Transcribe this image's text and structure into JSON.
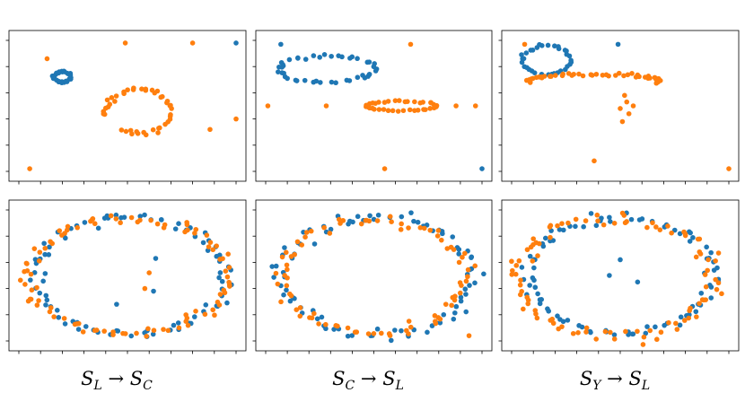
{
  "colors": {
    "series_a": "#1f77b4",
    "series_b": "#ff7f0e",
    "frame": "#000000"
  },
  "captions": [
    {
      "s1": "S",
      "s1_sub": "L",
      "arrow": "→",
      "s2": "S",
      "s2_sub": "C"
    },
    {
      "s1": "S",
      "s1_sub": "C",
      "arrow": "→",
      "s2": "S",
      "s2_sub": "L"
    },
    {
      "s1": "S",
      "s1_sub": "Y",
      "arrow": "→",
      "s2": "S",
      "s2_sub": "L"
    }
  ],
  "chart_data": [
    {
      "type": "scatter",
      "panel": "top-left",
      "xlim": [
        0,
        100
      ],
      "ylim": [
        0,
        100
      ],
      "tick_labels": false,
      "series": [
        {
          "color": "#1f77b4",
          "shape": "ring",
          "center": [
            20,
            72
          ],
          "radius": [
            4,
            4
          ],
          "n": 30,
          "noise": 0.6,
          "extra": [
            [
              100,
              98
            ]
          ]
        },
        {
          "color": "#ff7f0e",
          "shape": "ring",
          "center": [
            55,
            46
          ],
          "radius": [
            15,
            17
          ],
          "n": 45,
          "noise": 1.2,
          "arc": [
            -2.2,
            3.5
          ],
          "extra": [
            [
              13,
              86
            ],
            [
              49,
              98
            ],
            [
              80,
              98
            ],
            [
              88,
              32
            ],
            [
              100,
              40
            ],
            [
              5,
              2
            ]
          ]
        }
      ]
    },
    {
      "type": "scatter",
      "panel": "top-center",
      "xlim": [
        0,
        100
      ],
      "ylim": [
        0,
        100
      ],
      "tick_labels": false,
      "series": [
        {
          "color": "#1f77b4",
          "shape": "ring",
          "center": [
            28,
            78
          ],
          "radius": [
            22,
            10
          ],
          "n": 45,
          "noise": 1.2,
          "extra": [
            [
              7,
              97
            ],
            [
              100,
              2
            ]
          ]
        },
        {
          "color": "#ff7f0e",
          "shape": "ring",
          "center": [
            63,
            50
          ],
          "radius": [
            16,
            3.5
          ],
          "n": 40,
          "noise": 0.6,
          "extra": [
            [
              67,
              97
            ],
            [
              1,
              50
            ],
            [
              28,
              50
            ],
            [
              97,
              50
            ],
            [
              88,
              50
            ],
            [
              55,
              2
            ]
          ]
        }
      ]
    },
    {
      "type": "scatter",
      "panel": "top-right",
      "xlim": [
        0,
        100
      ],
      "ylim": [
        0,
        100
      ],
      "tick_labels": false,
      "series": [
        {
          "color": "#1f77b4",
          "shape": "ring",
          "center": [
            16,
            85
          ],
          "radius": [
            11,
            11
          ],
          "n": 35,
          "noise": 0.8,
          "extra": [
            [
              49,
              97
            ]
          ]
        },
        {
          "color": "#ff7f0e",
          "shape": "ring",
          "center": [
            38,
            69
          ],
          "radius": [
            30,
            5
          ],
          "n": 50,
          "noise": 1.0,
          "arc": [
            -0.3,
            3.14
          ],
          "extra": [
            [
              6,
              97
            ],
            [
              52,
              58
            ],
            [
              53,
              53
            ],
            [
              56,
              50
            ],
            [
              54,
              44
            ],
            [
              50,
              48
            ],
            [
              51,
              38
            ],
            [
              38,
              8
            ],
            [
              100,
              2
            ]
          ]
        }
      ]
    },
    {
      "type": "scatter",
      "panel": "bottom-left",
      "xlim": [
        0,
        100
      ],
      "ylim": [
        0,
        100
      ],
      "tick_labels": false,
      "series": [
        {
          "color": "#1f77b4",
          "shape": "ring",
          "center": [
            52,
            50
          ],
          "radius": [
            44,
            45
          ],
          "n": 85,
          "noise": 3,
          "extra": [
            [
              63,
              63
            ],
            [
              62,
              38
            ],
            [
              45,
              28
            ]
          ]
        },
        {
          "color": "#ff7f0e",
          "shape": "ring",
          "center": [
            50,
            50
          ],
          "radius": [
            46,
            44
          ],
          "n": 95,
          "noise": 3,
          "extra": [
            [
              60,
              52
            ],
            [
              58,
              40
            ]
          ]
        }
      ]
    },
    {
      "type": "scatter",
      "panel": "bottom-center",
      "xlim": [
        0,
        100
      ],
      "ylim": [
        0,
        100
      ],
      "tick_labels": false,
      "series": [
        {
          "color": "#1f77b4",
          "shape": "ring",
          "center": [
            52,
            50
          ],
          "radius": [
            44,
            45
          ],
          "n": 90,
          "noise": 3.5
        },
        {
          "color": "#ff7f0e",
          "shape": "ring",
          "center": [
            50,
            49
          ],
          "radius": [
            43,
            43
          ],
          "n": 85,
          "noise": 3,
          "extra": [
            [
              94,
              4
            ]
          ]
        }
      ]
    },
    {
      "type": "scatter",
      "panel": "bottom-right",
      "xlim": [
        0,
        100
      ],
      "ylim": [
        0,
        100
      ],
      "tick_labels": false,
      "series": [
        {
          "color": "#1f77b4",
          "shape": "ring",
          "center": [
            50,
            50
          ],
          "radius": [
            43,
            44
          ],
          "n": 90,
          "noise": 3,
          "extra": [
            [
              45,
              50
            ],
            [
              50,
              62
            ],
            [
              58,
              45
            ]
          ]
        },
        {
          "color": "#ff7f0e",
          "shape": "ring",
          "center": [
            48,
            48
          ],
          "radius": [
            46,
            45
          ],
          "n": 95,
          "noise": 3.5,
          "extra": [
            [
              10,
              78
            ],
            [
              12,
              65
            ]
          ]
        }
      ]
    }
  ]
}
